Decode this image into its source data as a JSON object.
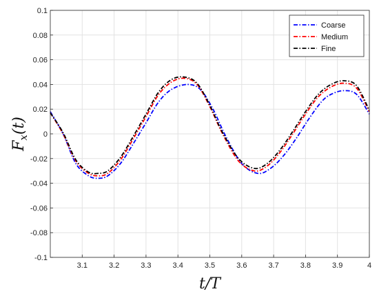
{
  "chart_data": {
    "type": "line",
    "xlabel": "t/T",
    "ylabel": "F_x(t)",
    "xlim": [
      3.0,
      4.0
    ],
    "ylim": [
      -0.1,
      0.1
    ],
    "xticks": [
      3.1,
      3.2,
      3.3,
      3.4,
      3.5,
      3.6,
      3.7,
      3.8,
      3.9,
      4
    ],
    "yticks": [
      -0.1,
      -0.08,
      -0.06,
      -0.04,
      -0.02,
      0,
      0.02,
      0.04,
      0.06,
      0.08,
      0.1
    ],
    "xtick_labels": [
      "3.1",
      "3.2",
      "3.3",
      "3.4",
      "3.5",
      "3.6",
      "3.7",
      "3.8",
      "3.9",
      "4"
    ],
    "ytick_labels": [
      "-0.1",
      "-0.08",
      "-0.06",
      "-0.04",
      "-0.02",
      "0",
      "0.02",
      "0.04",
      "0.06",
      "0.08",
      "0.1"
    ],
    "grid": true,
    "legend_position": "top-right",
    "series": [
      {
        "name": "Coarse",
        "color": "#0000ff",
        "x": [
          3.0,
          3.04,
          3.08,
          3.12,
          3.15,
          3.18,
          3.22,
          3.26,
          3.3,
          3.34,
          3.38,
          3.43,
          3.47,
          3.51,
          3.55,
          3.6,
          3.65,
          3.69,
          3.73,
          3.77,
          3.81,
          3.85,
          3.88,
          3.92,
          3.96,
          4.0
        ],
        "y": [
          0.018,
          0.0,
          -0.024,
          -0.034,
          -0.036,
          -0.034,
          -0.024,
          -0.008,
          0.009,
          0.026,
          0.036,
          0.04,
          0.036,
          0.02,
          -0.002,
          -0.024,
          -0.032,
          -0.028,
          -0.018,
          -0.004,
          0.012,
          0.026,
          0.032,
          0.035,
          0.032,
          0.016
        ]
      },
      {
        "name": "Medium",
        "color": "#ff0000",
        "x": [
          3.0,
          3.04,
          3.08,
          3.12,
          3.15,
          3.18,
          3.22,
          3.26,
          3.3,
          3.34,
          3.38,
          3.42,
          3.46,
          3.5,
          3.54,
          3.59,
          3.64,
          3.68,
          3.72,
          3.76,
          3.8,
          3.84,
          3.88,
          3.92,
          3.96,
          4.0
        ],
        "y": [
          0.017,
          0.0,
          -0.022,
          -0.032,
          -0.034,
          -0.032,
          -0.021,
          -0.004,
          0.014,
          0.032,
          0.042,
          0.045,
          0.04,
          0.022,
          0.0,
          -0.022,
          -0.03,
          -0.026,
          -0.015,
          0.0,
          0.016,
          0.03,
          0.038,
          0.041,
          0.037,
          0.018
        ]
      },
      {
        "name": "Fine",
        "color": "#000000",
        "x": [
          3.0,
          3.04,
          3.08,
          3.12,
          3.15,
          3.18,
          3.22,
          3.26,
          3.3,
          3.34,
          3.38,
          3.42,
          3.46,
          3.5,
          3.54,
          3.59,
          3.64,
          3.68,
          3.72,
          3.76,
          3.8,
          3.84,
          3.88,
          3.92,
          3.96,
          4.0
        ],
        "y": [
          0.017,
          0.001,
          -0.021,
          -0.031,
          -0.032,
          -0.03,
          -0.019,
          -0.002,
          0.016,
          0.034,
          0.044,
          0.046,
          0.041,
          0.023,
          0.001,
          -0.02,
          -0.028,
          -0.024,
          -0.013,
          0.002,
          0.018,
          0.032,
          0.04,
          0.043,
          0.039,
          0.019
        ]
      }
    ]
  }
}
